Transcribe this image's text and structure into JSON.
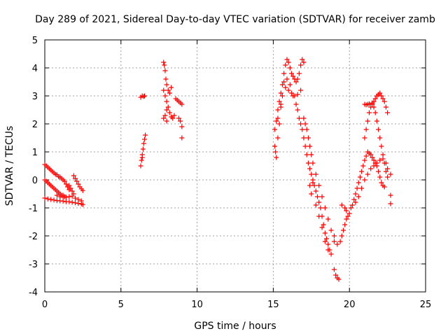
{
  "chart_data": {
    "type": "scatter",
    "title": "Day 289 of 2021, Sidereal Day-to-day VTEC variation (SDTVAR) for receiver zamb",
    "xlabel": "GPS time / hours",
    "ylabel": "SDTVAR / TECUs",
    "xlim": [
      0,
      25
    ],
    "ylim": [
      -4,
      5
    ],
    "xticks": [
      0,
      5,
      10,
      15,
      20,
      25
    ],
    "yticks": [
      -4,
      -3,
      -2,
      -1,
      0,
      1,
      2,
      3,
      4,
      5
    ],
    "grid": true,
    "marker": "+",
    "series_color": "#ff0000",
    "series": [
      {
        "name": "SDTVAR",
        "points": [
          [
            0.0,
            0.55
          ],
          [
            0.1,
            0.5
          ],
          [
            0.2,
            0.45
          ],
          [
            0.3,
            0.4
          ],
          [
            0.4,
            0.35
          ],
          [
            0.5,
            0.3
          ],
          [
            0.6,
            0.25
          ],
          [
            0.7,
            0.2
          ],
          [
            0.8,
            0.18
          ],
          [
            0.9,
            0.12
          ],
          [
            1.0,
            0.1
          ],
          [
            1.1,
            0.05
          ],
          [
            1.2,
            0.0
          ],
          [
            1.3,
            -0.05
          ],
          [
            1.4,
            -0.15
          ],
          [
            1.5,
            -0.25
          ],
          [
            1.6,
            -0.35
          ],
          [
            0.0,
            0.0
          ],
          [
            0.1,
            -0.05
          ],
          [
            0.2,
            -0.1
          ],
          [
            0.3,
            -0.15
          ],
          [
            0.4,
            -0.2
          ],
          [
            0.5,
            -0.25
          ],
          [
            0.6,
            -0.3
          ],
          [
            0.7,
            -0.35
          ],
          [
            0.8,
            -0.4
          ],
          [
            0.9,
            -0.45
          ],
          [
            1.0,
            -0.5
          ],
          [
            1.1,
            -0.55
          ],
          [
            1.2,
            -0.55
          ],
          [
            1.3,
            -0.6
          ],
          [
            0.0,
            -0.65
          ],
          [
            0.2,
            -0.68
          ],
          [
            0.4,
            -0.7
          ],
          [
            0.6,
            -0.72
          ],
          [
            0.8,
            -0.74
          ],
          [
            1.0,
            -0.75
          ],
          [
            1.2,
            -0.76
          ],
          [
            1.4,
            -0.78
          ],
          [
            1.6,
            -0.78
          ],
          [
            1.8,
            -0.8
          ],
          [
            2.0,
            -0.82
          ],
          [
            2.2,
            -0.84
          ],
          [
            2.4,
            -0.86
          ],
          [
            2.5,
            -0.88
          ],
          [
            0.8,
            -0.55
          ],
          [
            1.0,
            -0.6
          ],
          [
            1.2,
            -0.62
          ],
          [
            1.4,
            -0.62
          ],
          [
            1.6,
            -0.6
          ],
          [
            1.8,
            -0.58
          ],
          [
            2.0,
            -0.65
          ],
          [
            2.2,
            -0.7
          ],
          [
            2.4,
            -0.75
          ],
          [
            1.6,
            -0.2
          ],
          [
            1.7,
            -0.3
          ],
          [
            1.8,
            -0.4
          ],
          [
            1.9,
            -0.5
          ],
          [
            1.9,
            0.15
          ],
          [
            2.0,
            0.05
          ],
          [
            2.1,
            -0.05
          ],
          [
            2.2,
            -0.15
          ],
          [
            2.3,
            -0.25
          ],
          [
            2.4,
            -0.32
          ],
          [
            2.5,
            -0.38
          ],
          [
            6.3,
            0.5
          ],
          [
            6.35,
            0.7
          ],
          [
            6.4,
            0.9
          ],
          [
            6.45,
            1.1
          ],
          [
            6.5,
            1.3
          ],
          [
            6.55,
            1.45
          ],
          [
            6.6,
            1.6
          ],
          [
            6.4,
            0.8
          ],
          [
            6.3,
            2.95
          ],
          [
            6.4,
            3.0
          ],
          [
            6.5,
            2.98
          ],
          [
            6.55,
            3.0
          ],
          [
            7.8,
            4.2
          ],
          [
            7.85,
            4.1
          ],
          [
            7.9,
            3.9
          ],
          [
            7.95,
            3.6
          ],
          [
            8.0,
            3.4
          ],
          [
            8.1,
            3.2
          ],
          [
            8.2,
            3.1
          ],
          [
            8.3,
            3.3
          ],
          [
            7.8,
            3.2
          ],
          [
            7.9,
            3.0
          ],
          [
            8.0,
            2.8
          ],
          [
            8.1,
            2.6
          ],
          [
            8.2,
            2.4
          ],
          [
            8.3,
            2.25
          ],
          [
            8.4,
            2.2
          ],
          [
            8.5,
            2.3
          ],
          [
            7.8,
            2.2
          ],
          [
            7.9,
            2.3
          ],
          [
            8.0,
            2.5
          ],
          [
            8.0,
            2.1
          ],
          [
            8.6,
            2.9
          ],
          [
            8.7,
            2.85
          ],
          [
            8.8,
            2.8
          ],
          [
            8.9,
            2.75
          ],
          [
            9.0,
            2.7
          ],
          [
            8.8,
            2.2
          ],
          [
            8.9,
            2.1
          ],
          [
            9.0,
            1.9
          ],
          [
            9.0,
            1.5
          ],
          [
            15.1,
            1.8
          ],
          [
            15.2,
            2.1
          ],
          [
            15.3,
            2.5
          ],
          [
            15.4,
            2.8
          ],
          [
            15.5,
            3.1
          ],
          [
            15.6,
            3.4
          ],
          [
            15.7,
            3.8
          ],
          [
            15.8,
            4.1
          ],
          [
            15.9,
            4.3
          ],
          [
            16.0,
            4.2
          ],
          [
            16.1,
            4.0
          ],
          [
            16.2,
            3.8
          ],
          [
            16.3,
            3.7
          ],
          [
            16.4,
            3.6
          ],
          [
            16.5,
            3.5
          ],
          [
            16.6,
            3.6
          ],
          [
            16.7,
            3.8
          ],
          [
            16.8,
            4.1
          ],
          [
            16.9,
            4.3
          ],
          [
            17.0,
            4.2
          ],
          [
            15.1,
            1.2
          ],
          [
            15.15,
            1.0
          ],
          [
            15.2,
            0.8
          ],
          [
            15.3,
            1.5
          ],
          [
            15.4,
            2.0
          ],
          [
            15.5,
            2.6
          ],
          [
            15.6,
            3.0
          ],
          [
            15.8,
            3.3
          ],
          [
            16.0,
            3.2
          ],
          [
            16.2,
            3.1
          ],
          [
            16.4,
            3.0
          ],
          [
            16.6,
            3.05
          ],
          [
            16.8,
            3.2
          ],
          [
            15.3,
            2.2
          ],
          [
            15.5,
            2.7
          ],
          [
            15.7,
            3.5
          ],
          [
            15.9,
            3.6
          ],
          [
            16.1,
            3.4
          ],
          [
            16.3,
            3.0
          ],
          [
            16.5,
            2.7
          ],
          [
            16.6,
            2.5
          ],
          [
            16.7,
            2.2
          ],
          [
            16.8,
            2.0
          ],
          [
            16.9,
            1.8
          ],
          [
            17.0,
            1.5
          ],
          [
            17.1,
            1.2
          ],
          [
            17.2,
            0.9
          ],
          [
            17.3,
            0.6
          ],
          [
            17.4,
            0.4
          ],
          [
            17.5,
            0.2
          ],
          [
            17.6,
            0.0
          ],
          [
            17.7,
            -0.2
          ],
          [
            17.8,
            -0.4
          ],
          [
            17.9,
            -0.6
          ],
          [
            18.0,
            -0.8
          ],
          [
            18.1,
            -1.0
          ],
          [
            18.2,
            -1.3
          ],
          [
            18.3,
            -1.6
          ],
          [
            18.4,
            -1.9
          ],
          [
            18.5,
            -2.1
          ],
          [
            18.6,
            -2.3
          ],
          [
            18.7,
            -2.5
          ],
          [
            18.8,
            -2.65
          ],
          [
            17.0,
            2.2
          ],
          [
            17.1,
            2.0
          ],
          [
            17.2,
            1.8
          ],
          [
            17.3,
            1.5
          ],
          [
            17.4,
            1.2
          ],
          [
            17.5,
            0.9
          ],
          [
            17.6,
            0.6
          ],
          [
            17.8,
            0.2
          ],
          [
            18.0,
            -0.2
          ],
          [
            18.2,
            -0.6
          ],
          [
            18.4,
            -1.0
          ],
          [
            18.6,
            -1.4
          ],
          [
            18.8,
            -1.8
          ],
          [
            19.0,
            -2.0
          ],
          [
            17.4,
            -0.2
          ],
          [
            17.5,
            -0.5
          ],
          [
            17.6,
            -0.1
          ],
          [
            17.8,
            -0.9
          ],
          [
            18.0,
            -1.3
          ],
          [
            18.2,
            -1.7
          ],
          [
            18.4,
            -2.2
          ],
          [
            18.6,
            -2.5
          ],
          [
            19.0,
            -3.2
          ],
          [
            19.1,
            -3.4
          ],
          [
            19.2,
            -3.5
          ],
          [
            19.3,
            -3.55
          ],
          [
            19.0,
            -2.2
          ],
          [
            19.2,
            -2.3
          ],
          [
            19.4,
            -2.2
          ],
          [
            19.5,
            -2.0
          ],
          [
            19.6,
            -1.8
          ],
          [
            19.7,
            -1.6
          ],
          [
            19.8,
            -1.4
          ],
          [
            19.9,
            -1.3
          ],
          [
            20.0,
            -1.2
          ],
          [
            19.5,
            -0.9
          ],
          [
            19.7,
            -1.0
          ],
          [
            19.8,
            -1.1
          ],
          [
            20.1,
            -1.0
          ],
          [
            20.2,
            -0.9
          ],
          [
            20.3,
            -0.7
          ],
          [
            20.4,
            -0.5
          ],
          [
            20.5,
            -0.3
          ],
          [
            20.6,
            -0.1
          ],
          [
            20.7,
            0.1
          ],
          [
            20.8,
            0.3
          ],
          [
            20.9,
            0.5
          ],
          [
            21.0,
            0.7
          ],
          [
            21.1,
            0.85
          ],
          [
            21.2,
            1.0
          ],
          [
            21.3,
            0.95
          ],
          [
            21.4,
            0.9
          ],
          [
            21.5,
            0.8
          ],
          [
            21.6,
            0.7
          ],
          [
            21.7,
            0.6
          ],
          [
            21.8,
            0.5
          ],
          [
            21.9,
            0.3
          ],
          [
            22.0,
            0.1
          ],
          [
            22.1,
            -0.1
          ],
          [
            22.2,
            -0.2
          ],
          [
            22.3,
            -0.25
          ],
          [
            20.4,
            -0.8
          ],
          [
            20.6,
            -0.6
          ],
          [
            20.8,
            -0.3
          ],
          [
            21.0,
            0.0
          ],
          [
            21.2,
            0.2
          ],
          [
            21.4,
            0.4
          ],
          [
            21.6,
            0.5
          ],
          [
            21.8,
            0.6
          ],
          [
            22.0,
            0.7
          ],
          [
            22.2,
            0.75
          ],
          [
            22.4,
            0.6
          ],
          [
            22.5,
            0.4
          ],
          [
            21.0,
            1.5
          ],
          [
            21.1,
            1.8
          ],
          [
            21.2,
            2.1
          ],
          [
            21.3,
            2.4
          ],
          [
            21.4,
            2.6
          ],
          [
            21.5,
            2.7
          ],
          [
            21.6,
            2.6
          ],
          [
            21.7,
            2.4
          ],
          [
            21.8,
            2.1
          ],
          [
            21.9,
            1.8
          ],
          [
            22.0,
            1.5
          ],
          [
            22.1,
            1.2
          ],
          [
            22.2,
            0.9
          ],
          [
            22.3,
            0.6
          ],
          [
            22.4,
            0.3
          ],
          [
            22.5,
            0.1
          ],
          [
            21.5,
            2.75
          ],
          [
            21.6,
            2.8
          ],
          [
            21.7,
            2.9
          ],
          [
            21.8,
            3.0
          ],
          [
            21.9,
            3.05
          ],
          [
            22.0,
            3.1
          ],
          [
            22.1,
            3.0
          ],
          [
            22.2,
            2.9
          ],
          [
            22.3,
            2.8
          ],
          [
            22.4,
            2.6
          ],
          [
            22.5,
            2.4
          ],
          [
            21.0,
            2.7
          ],
          [
            21.1,
            2.68
          ],
          [
            21.2,
            2.7
          ],
          [
            21.3,
            2.72
          ],
          [
            22.7,
            0.2
          ],
          [
            22.7,
            -0.55
          ],
          [
            22.7,
            -0.85
          ]
        ]
      }
    ]
  }
}
